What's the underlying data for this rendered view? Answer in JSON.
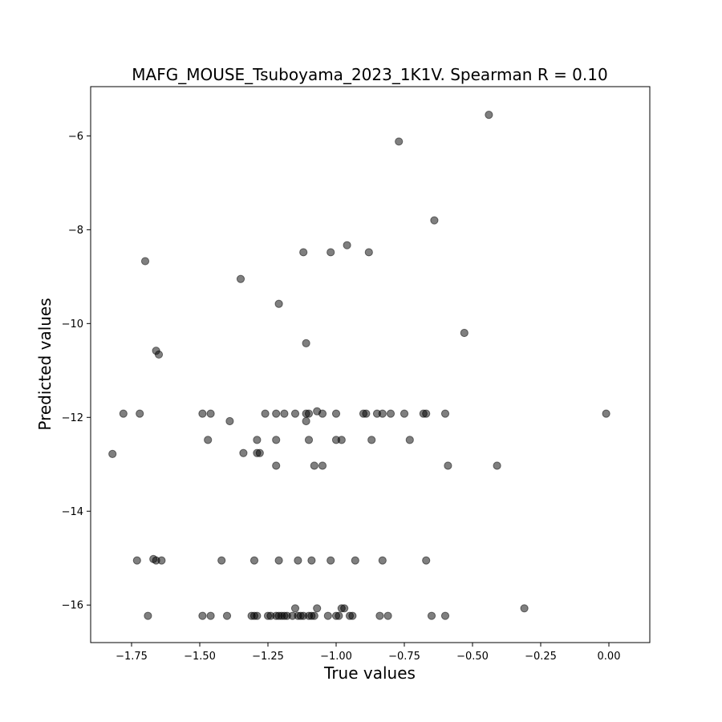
{
  "chart_data": {
    "type": "scatter",
    "title": "MAFG_MOUSE_Tsuboyama_2023_1K1V. Spearman R = 0.10",
    "xlabel": "True values",
    "ylabel": "Predicted values",
    "xlim": [
      -1.9,
      0.15
    ],
    "ylim": [
      -16.8,
      -4.95
    ],
    "xticks": [
      -1.75,
      -1.5,
      -1.25,
      -1.0,
      -0.75,
      -0.5,
      -0.25,
      0.0
    ],
    "xtick_labels": [
      "−1.75",
      "−1.50",
      "−1.25",
      "−1.00",
      "−0.75",
      "−0.50",
      "−0.25",
      "0.00"
    ],
    "yticks": [
      -16,
      -14,
      -12,
      -10,
      -8,
      -6
    ],
    "ytick_labels": [
      "−16",
      "−14",
      "−12",
      "−10",
      "−8",
      "−6"
    ],
    "grid": false,
    "marker_color": "#000000",
    "marker_opacity": 0.5,
    "points": [
      [
        -0.44,
        -5.55
      ],
      [
        -0.77,
        -6.12
      ],
      [
        -0.64,
        -7.8
      ],
      [
        -0.96,
        -8.33
      ],
      [
        -1.12,
        -8.48
      ],
      [
        -1.02,
        -8.48
      ],
      [
        -0.88,
        -8.48
      ],
      [
        -1.7,
        -8.67
      ],
      [
        -1.35,
        -9.05
      ],
      [
        -1.21,
        -9.58
      ],
      [
        -0.53,
        -10.2
      ],
      [
        -1.11,
        -10.42
      ],
      [
        -1.66,
        -10.58
      ],
      [
        -1.65,
        -10.66
      ],
      [
        -1.78,
        -11.92
      ],
      [
        -1.72,
        -11.92
      ],
      [
        -1.49,
        -11.92
      ],
      [
        -1.46,
        -11.92
      ],
      [
        -1.26,
        -11.92
      ],
      [
        -1.22,
        -11.92
      ],
      [
        -1.19,
        -11.92
      ],
      [
        -1.15,
        -11.92
      ],
      [
        -1.11,
        -11.92
      ],
      [
        -1.1,
        -11.92
      ],
      [
        -1.07,
        -11.87
      ],
      [
        -1.05,
        -11.92
      ],
      [
        -1.0,
        -11.92
      ],
      [
        -0.9,
        -11.92
      ],
      [
        -0.89,
        -11.92
      ],
      [
        -0.85,
        -11.92
      ],
      [
        -0.83,
        -11.92
      ],
      [
        -0.8,
        -11.92
      ],
      [
        -0.75,
        -11.92
      ],
      [
        -0.68,
        -11.92
      ],
      [
        -0.67,
        -11.92
      ],
      [
        -0.6,
        -11.92
      ],
      [
        -0.01,
        -11.92
      ],
      [
        -1.39,
        -12.08
      ],
      [
        -1.11,
        -12.08
      ],
      [
        -1.47,
        -12.48
      ],
      [
        -1.29,
        -12.48
      ],
      [
        -1.22,
        -12.48
      ],
      [
        -1.1,
        -12.48
      ],
      [
        -1.0,
        -12.48
      ],
      [
        -0.98,
        -12.48
      ],
      [
        -0.87,
        -12.48
      ],
      [
        -0.73,
        -12.48
      ],
      [
        -1.82,
        -12.78
      ],
      [
        -1.34,
        -12.76
      ],
      [
        -1.29,
        -12.76
      ],
      [
        -1.28,
        -12.76
      ],
      [
        -1.22,
        -13.03
      ],
      [
        -1.08,
        -13.03
      ],
      [
        -1.05,
        -13.03
      ],
      [
        -0.59,
        -13.03
      ],
      [
        -0.41,
        -13.03
      ],
      [
        -1.67,
        -15.02
      ],
      [
        -1.73,
        -15.05
      ],
      [
        -1.66,
        -15.05
      ],
      [
        -1.64,
        -15.05
      ],
      [
        -1.42,
        -15.05
      ],
      [
        -1.3,
        -15.05
      ],
      [
        -1.21,
        -15.05
      ],
      [
        -1.14,
        -15.05
      ],
      [
        -1.09,
        -15.05
      ],
      [
        -1.02,
        -15.05
      ],
      [
        -0.93,
        -15.05
      ],
      [
        -0.83,
        -15.05
      ],
      [
        -0.67,
        -15.05
      ],
      [
        -1.15,
        -16.07
      ],
      [
        -1.07,
        -16.07
      ],
      [
        -0.98,
        -16.07
      ],
      [
        -0.97,
        -16.07
      ],
      [
        -0.31,
        -16.07
      ],
      [
        -1.69,
        -16.23
      ],
      [
        -1.49,
        -16.23
      ],
      [
        -1.46,
        -16.23
      ],
      [
        -1.4,
        -16.23
      ],
      [
        -1.31,
        -16.23
      ],
      [
        -1.3,
        -16.23
      ],
      [
        -1.29,
        -16.23
      ],
      [
        -1.25,
        -16.23
      ],
      [
        -1.24,
        -16.23
      ],
      [
        -1.22,
        -16.23
      ],
      [
        -1.21,
        -16.23
      ],
      [
        -1.2,
        -16.23
      ],
      [
        -1.19,
        -16.23
      ],
      [
        -1.18,
        -16.23
      ],
      [
        -1.16,
        -16.23
      ],
      [
        -1.14,
        -16.23
      ],
      [
        -1.13,
        -16.23
      ],
      [
        -1.12,
        -16.23
      ],
      [
        -1.1,
        -16.23
      ],
      [
        -1.09,
        -16.23
      ],
      [
        -1.08,
        -16.23
      ],
      [
        -1.03,
        -16.23
      ],
      [
        -1.0,
        -16.23
      ],
      [
        -0.99,
        -16.23
      ],
      [
        -0.95,
        -16.23
      ],
      [
        -0.94,
        -16.23
      ],
      [
        -0.84,
        -16.23
      ],
      [
        -0.81,
        -16.23
      ],
      [
        -0.65,
        -16.23
      ],
      [
        -0.6,
        -16.23
      ]
    ]
  }
}
